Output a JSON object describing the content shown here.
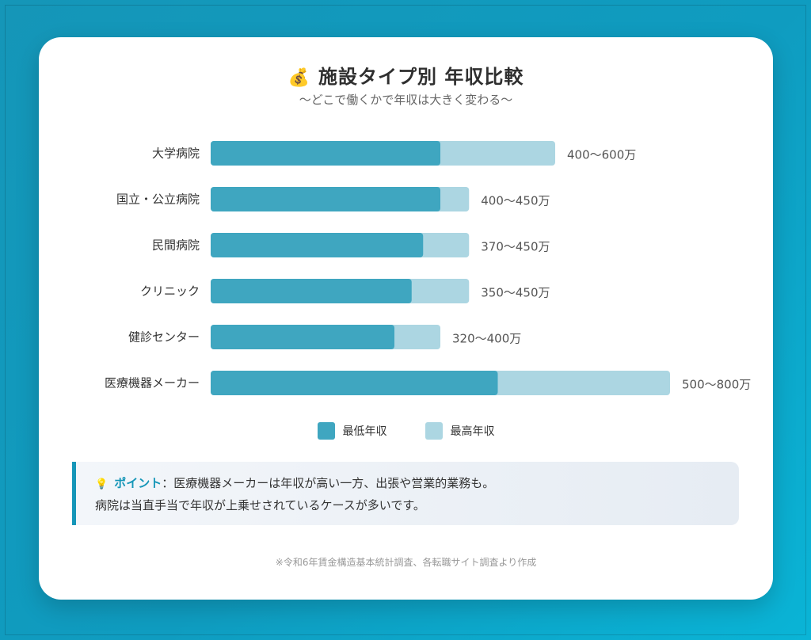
{
  "title": "施設タイプ別 年収比較",
  "title_icon": "money-bag-icon",
  "subtitle": "〜どこで働くかで年収は大きく変わる〜",
  "colors": {
    "min_bar": "#3fa6c0",
    "max_bar": "#acd6e2",
    "accent": "#1596b8"
  },
  "chart_data": {
    "type": "bar",
    "orientation": "horizontal",
    "stacked_range": true,
    "categories": [
      "大学病院",
      "国立・公立病院",
      "民間病院",
      "クリニック",
      "健診センター",
      "医療機器メーカー"
    ],
    "series": [
      {
        "name": "最低年収",
        "values": [
          400,
          400,
          370,
          350,
          320,
          500
        ]
      },
      {
        "name": "最高年収",
        "values": [
          600,
          450,
          450,
          450,
          400,
          800
        ]
      }
    ],
    "value_labels": [
      "400〜600万",
      "400〜450万",
      "370〜450万",
      "350〜450万",
      "320〜400万",
      "500〜800万"
    ],
    "xlim": [
      0,
      800
    ],
    "grid": false,
    "legend_position": "bottom"
  },
  "legend": {
    "min_label": "最低年収",
    "max_label": "最高年収"
  },
  "point": {
    "label": "ポイント",
    "line1": "：医療機器メーカーは年収が高い一方、出張や営業的業務も。",
    "line2": "病院は当直手当で年収が上乗せされているケースが多いです。"
  },
  "footnote": "※令和6年賃金構造基本統計調査、各転職サイト調査より作成"
}
